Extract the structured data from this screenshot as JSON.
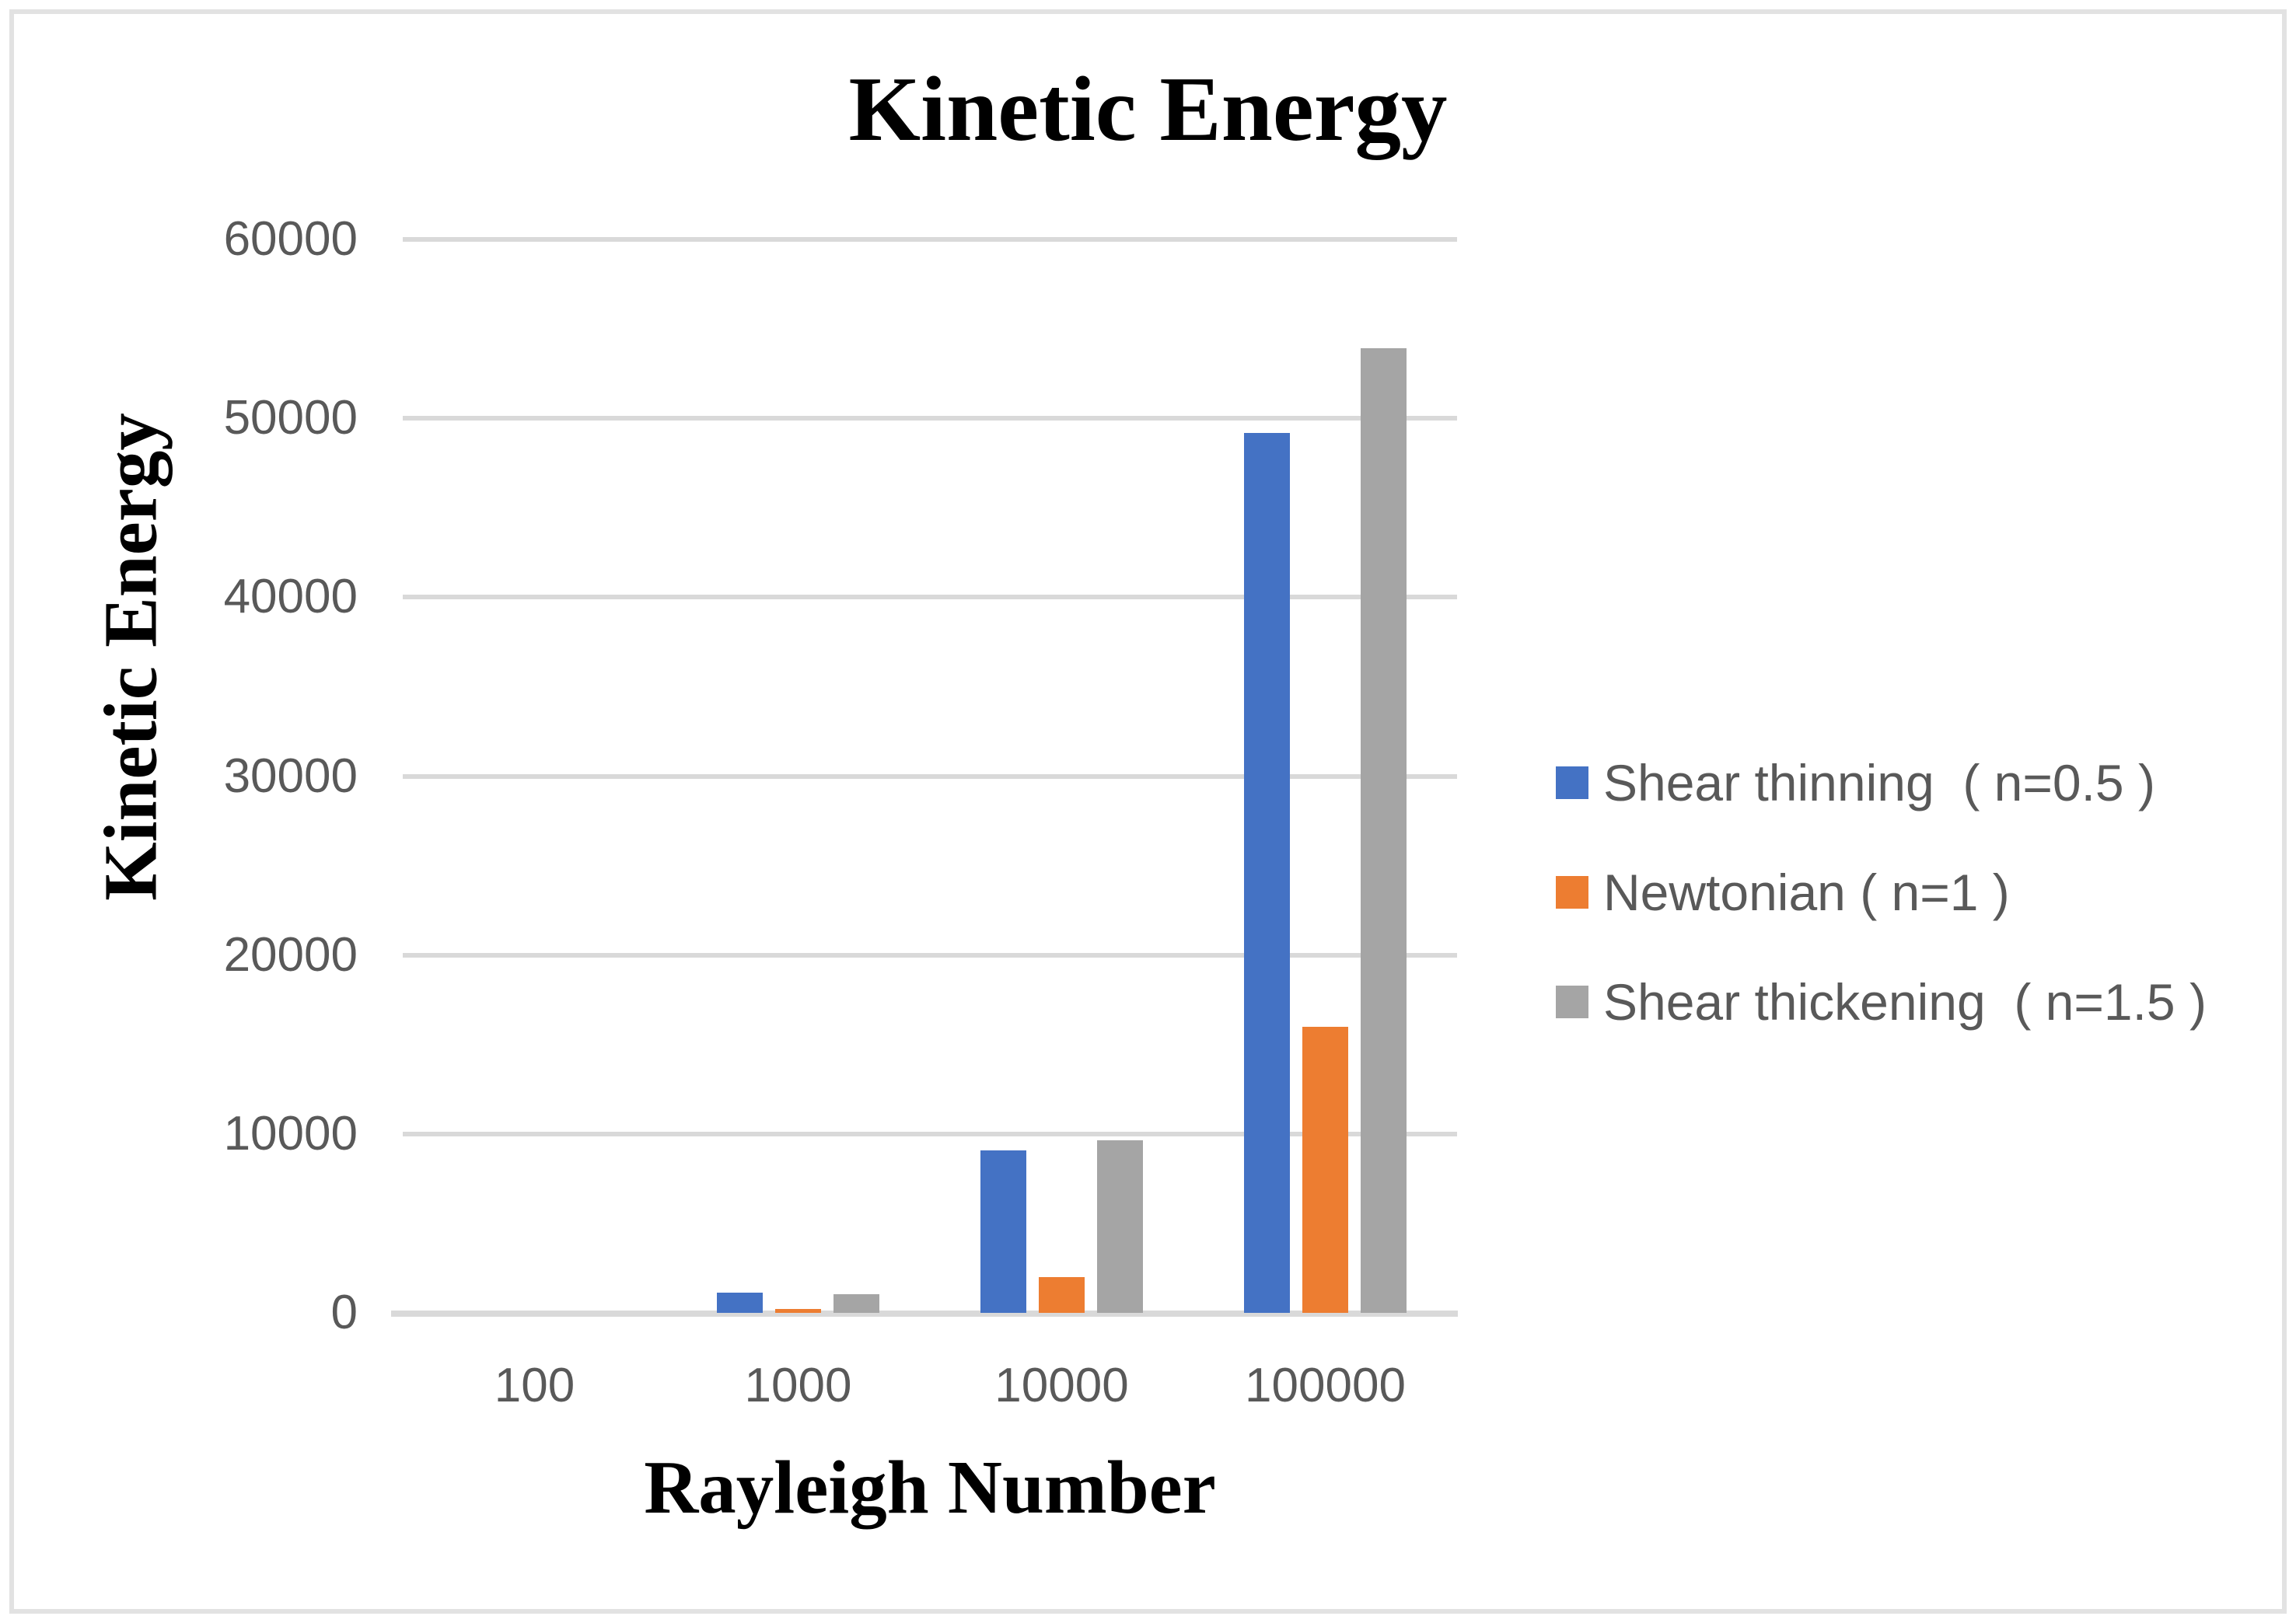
{
  "chart_data": {
    "type": "bar",
    "title": "Kinetic Energy",
    "xlabel": "Rayleigh Number",
    "ylabel": "Kinetic Energy",
    "categories": [
      "100",
      "1000",
      "10000",
      "100000"
    ],
    "series": [
      {
        "key": "shear-thinning",
        "name": "Shear thinning  ( n=0.5 )",
        "color": "#4472C4",
        "values": [
          0,
          1150,
          9100,
          49200
        ]
      },
      {
        "key": "newtonian",
        "name": "Newtonian ( n=1 )",
        "color": "#ED7D31",
        "values": [
          0,
          200,
          2000,
          16000
        ]
      },
      {
        "key": "shear-thickening",
        "name": "Shear thickening  ( n=1.5 )",
        "color": "#A5A5A5",
        "values": [
          0,
          1050,
          9650,
          53900
        ]
      }
    ],
    "ylim": [
      0,
      60000
    ],
    "yticks": [
      0,
      10000,
      20000,
      30000,
      40000,
      50000,
      60000
    ],
    "grid": true,
    "legend_position": "right"
  },
  "colors": {
    "series_blue": "#4472C4",
    "series_orange": "#ED7D31",
    "series_gray": "#A5A5A5",
    "gridline": "#D9D9D9",
    "axis_text": "#595959",
    "title_text": "#000000",
    "chart_border": "#E2E2E2",
    "background": "#FFFFFF"
  }
}
